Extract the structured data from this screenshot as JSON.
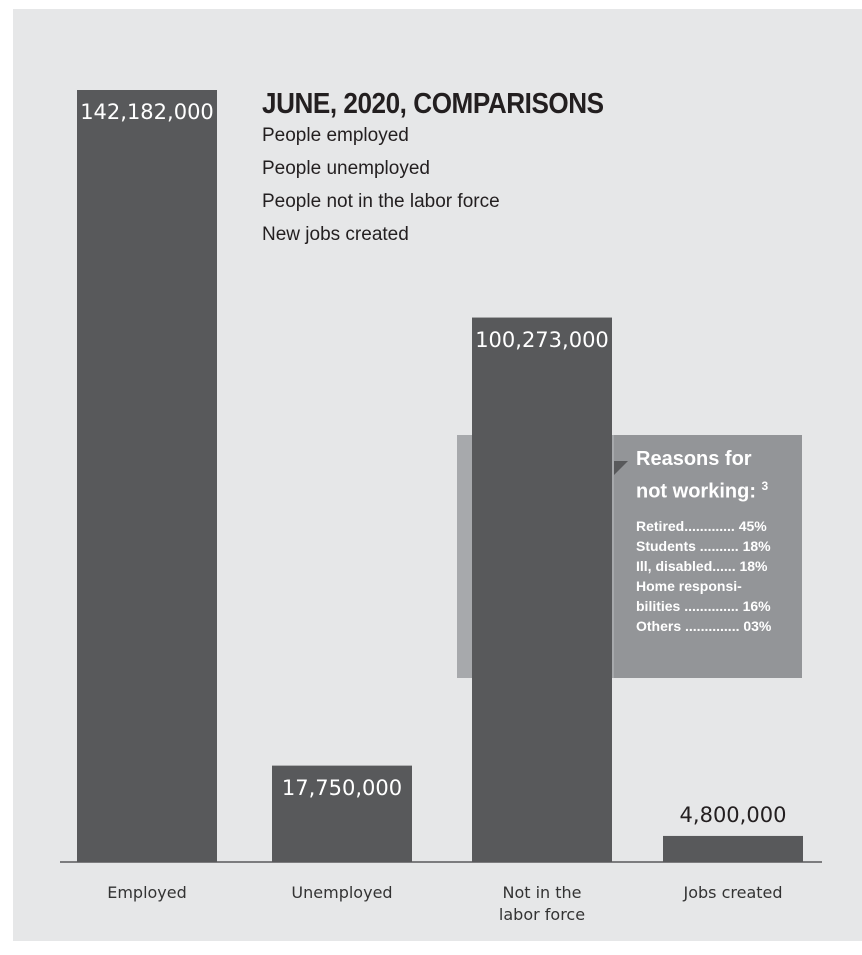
{
  "colors": {
    "background": "#e6e7e8",
    "bar": "#58595b",
    "callout_bg": "#939598",
    "callout_shadow": "#a7a9ac",
    "text": "#231f20"
  },
  "chart_data": {
    "type": "bar",
    "title": "JUNE, 2020, COMPARISONS",
    "legend_lines": [
      "People employed",
      "People unemployed",
      "People not in the labor force",
      "New jobs created"
    ],
    "categories": [
      {
        "label_lines": [
          "Employed"
        ],
        "value": 142182000,
        "value_label": "142,182,000",
        "label_position": "inside"
      },
      {
        "label_lines": [
          "Unemployed"
        ],
        "value": 17750000,
        "value_label": "17,750,000",
        "label_position": "inside"
      },
      {
        "label_lines": [
          "Not in the",
          "labor force"
        ],
        "value": 100273000,
        "value_label": "100,273,000",
        "label_position": "inside"
      },
      {
        "label_lines": [
          "Jobs created"
        ],
        "value": 4800000,
        "value_label": "4,800,000",
        "label_position": "outside"
      }
    ],
    "xlabel": "",
    "ylabel": "",
    "ylim": [
      0,
      142182000
    ],
    "grid": false,
    "annotation": {
      "title_lines": [
        "Reasons for",
        "not working:"
      ],
      "footnote": "3",
      "items": [
        {
          "text": "Retired............. 45%"
        },
        {
          "text": "Students .......... 18%"
        },
        {
          "text": "Ill, disabled...... 18%"
        },
        {
          "text": "Home responsi-"
        },
        {
          "text": "bilities .............. 16%"
        },
        {
          "text": "Others .............. 03%"
        }
      ]
    }
  }
}
